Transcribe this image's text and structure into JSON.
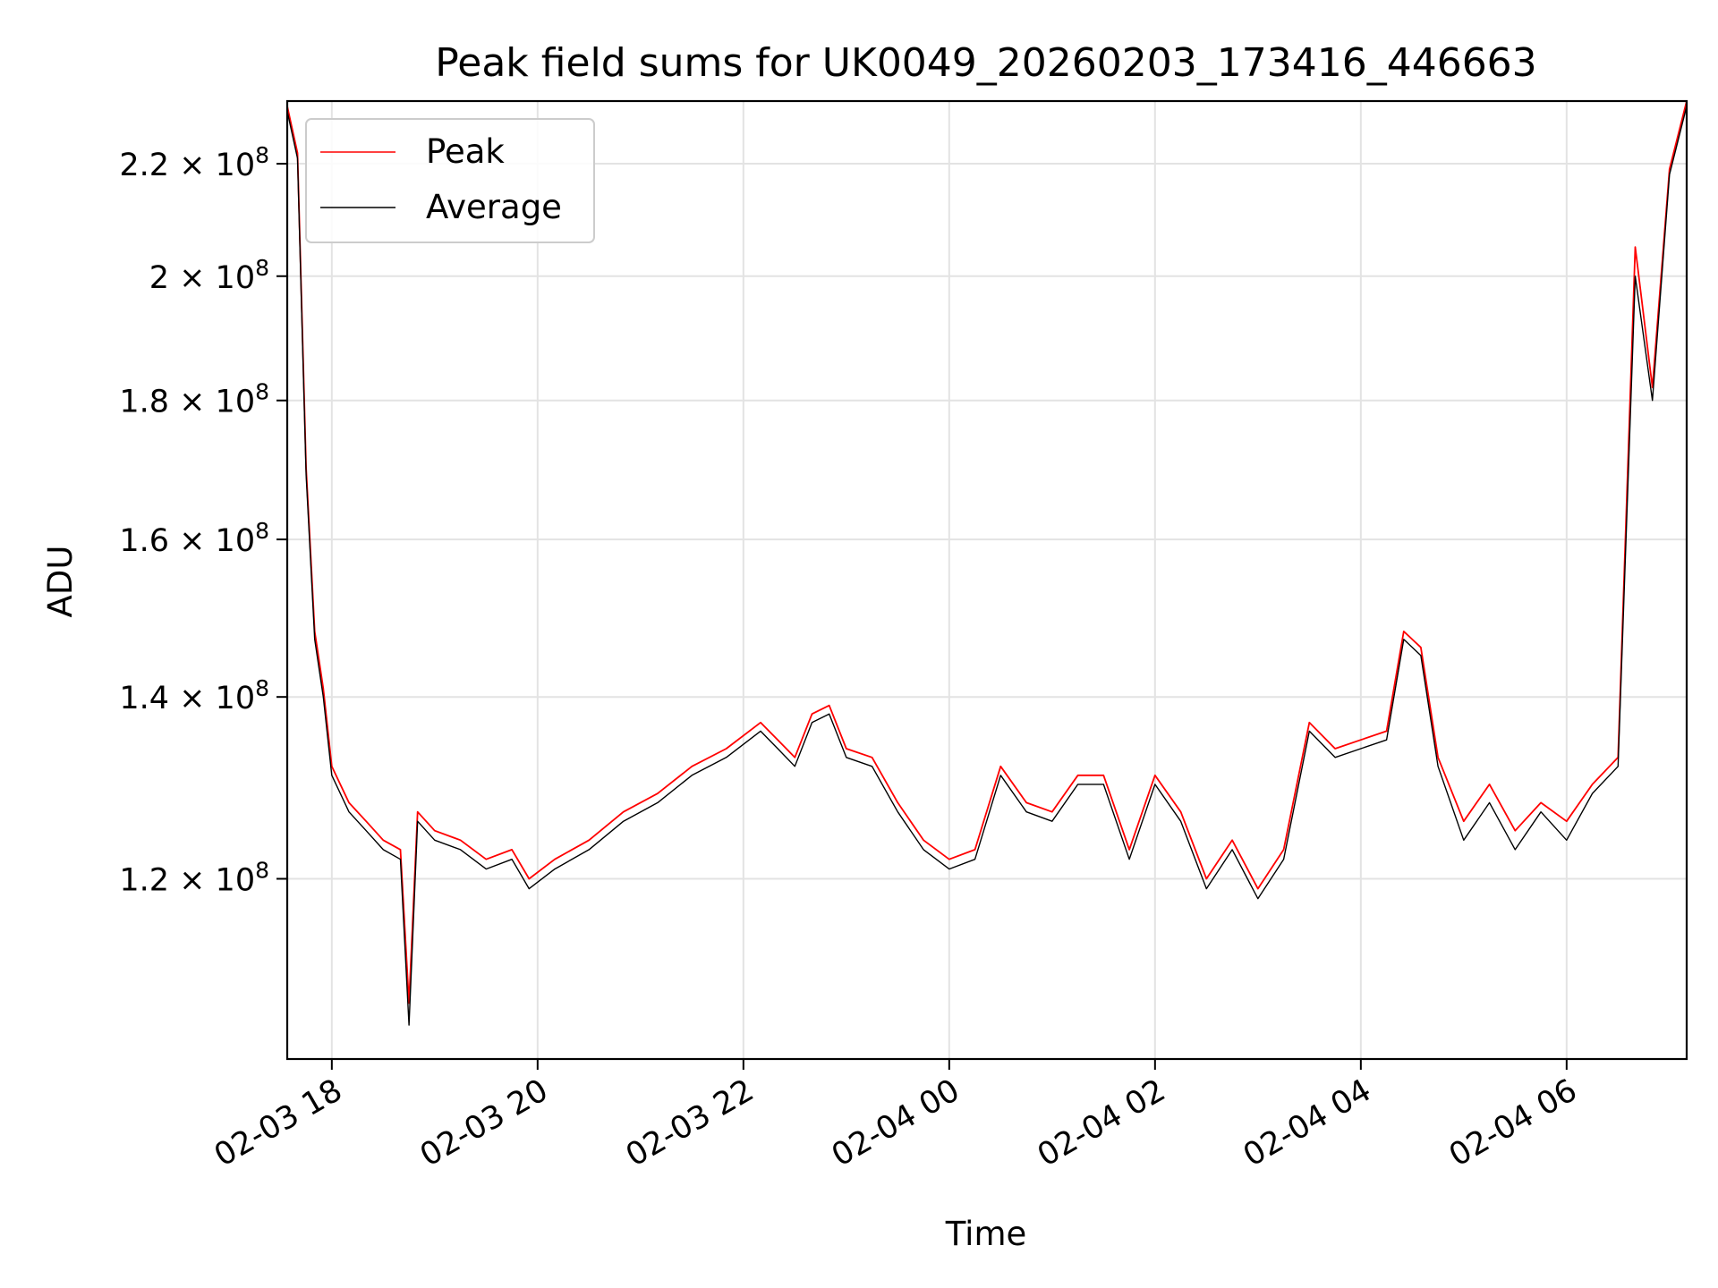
{
  "chart_data": {
    "type": "line",
    "title": "Peak field sums for UK0049_20260203_173416_446663",
    "xlabel": "Time",
    "ylabel": "ADU",
    "x_start": "2026-02-03 17:34",
    "x_end": "2026-02-04 07:10",
    "ylim": [
      103000000,
      232000000
    ],
    "grid": true,
    "legend_position": "top-left",
    "x_ticks": [
      {
        "label": "02-03 18",
        "value": "2026-02-03 18:00"
      },
      {
        "label": "02-03 20",
        "value": "2026-02-03 20:00"
      },
      {
        "label": "02-03 22",
        "value": "2026-02-03 22:00"
      },
      {
        "label": "02-04 00",
        "value": "2026-02-04 00:00"
      },
      {
        "label": "02-04 02",
        "value": "2026-02-04 02:00"
      },
      {
        "label": "02-04 04",
        "value": "2026-02-04 04:00"
      },
      {
        "label": "02-04 06",
        "value": "2026-02-04 06:00"
      }
    ],
    "y_ticks": [
      {
        "value": 120000000,
        "mantissa": "1.2",
        "exponent": "8"
      },
      {
        "value": 140000000,
        "mantissa": "1.4",
        "exponent": "8"
      },
      {
        "value": 160000000,
        "mantissa": "1.6",
        "exponent": "8"
      },
      {
        "value": 180000000,
        "mantissa": "1.8",
        "exponent": "8"
      },
      {
        "value": 200000000,
        "mantissa": "2",
        "exponent": "8"
      },
      {
        "value": 220000000,
        "mantissa": "2.2",
        "exponent": "8"
      }
    ],
    "y_tick_times": "× 10",
    "series": [
      {
        "name": "Peak",
        "color": "#ff0000",
        "x": [
          "2026-02-03 17:34",
          "2026-02-03 17:40",
          "2026-02-03 17:45",
          "2026-02-03 17:50",
          "2026-02-03 17:55",
          "2026-02-03 18:00",
          "2026-02-03 18:10",
          "2026-02-03 18:20",
          "2026-02-03 18:30",
          "2026-02-03 18:40",
          "2026-02-03 18:45",
          "2026-02-03 18:50",
          "2026-02-03 19:00",
          "2026-02-03 19:15",
          "2026-02-03 19:30",
          "2026-02-03 19:45",
          "2026-02-03 19:55",
          "2026-02-03 20:10",
          "2026-02-03 20:30",
          "2026-02-03 20:50",
          "2026-02-03 21:10",
          "2026-02-03 21:30",
          "2026-02-03 21:50",
          "2026-02-03 22:10",
          "2026-02-03 22:20",
          "2026-02-03 22:30",
          "2026-02-03 22:40",
          "2026-02-03 22:50",
          "2026-02-03 23:00",
          "2026-02-03 23:15",
          "2026-02-03 23:30",
          "2026-02-03 23:45",
          "2026-02-04 00:00",
          "2026-02-04 00:15",
          "2026-02-04 00:30",
          "2026-02-04 00:45",
          "2026-02-04 01:00",
          "2026-02-04 01:15",
          "2026-02-04 01:30",
          "2026-02-04 01:45",
          "2026-02-04 02:00",
          "2026-02-04 02:15",
          "2026-02-04 02:30",
          "2026-02-04 02:45",
          "2026-02-04 03:00",
          "2026-02-04 03:15",
          "2026-02-04 03:30",
          "2026-02-04 03:45",
          "2026-02-04 04:00",
          "2026-02-04 04:15",
          "2026-02-04 04:25",
          "2026-02-04 04:35",
          "2026-02-04 04:45",
          "2026-02-04 05:00",
          "2026-02-04 05:15",
          "2026-02-04 05:30",
          "2026-02-04 05:45",
          "2026-02-04 06:00",
          "2026-02-04 06:15",
          "2026-02-04 06:30",
          "2026-02-04 06:40",
          "2026-02-04 06:50",
          "2026-02-04 07:00",
          "2026-02-04 07:10"
        ],
        "y": [
          231000000,
          222000000,
          170000000,
          148000000,
          141000000,
          132000000,
          128000000,
          126000000,
          124000000,
          123000000,
          108000000,
          127000000,
          125000000,
          124000000,
          122000000,
          123000000,
          120000000,
          122000000,
          124000000,
          127000000,
          129000000,
          132000000,
          134000000,
          137000000,
          135000000,
          133000000,
          138000000,
          139000000,
          134000000,
          133000000,
          128000000,
          124000000,
          122000000,
          123000000,
          132000000,
          128000000,
          127000000,
          131000000,
          131000000,
          123000000,
          131000000,
          127000000,
          120000000,
          124000000,
          119000000,
          123000000,
          137000000,
          134000000,
          135000000,
          136000000,
          148000000,
          146000000,
          133000000,
          126000000,
          130000000,
          125000000,
          128000000,
          126000000,
          130000000,
          133000000,
          205000000,
          182000000,
          219000000,
          232000000
        ]
      },
      {
        "name": "Average",
        "color": "#000000",
        "x": [
          "2026-02-03 17:34",
          "2026-02-03 17:40",
          "2026-02-03 17:45",
          "2026-02-03 17:50",
          "2026-02-03 17:55",
          "2026-02-03 18:00",
          "2026-02-03 18:10",
          "2026-02-03 18:20",
          "2026-02-03 18:30",
          "2026-02-03 18:40",
          "2026-02-03 18:45",
          "2026-02-03 18:50",
          "2026-02-03 19:00",
          "2026-02-03 19:15",
          "2026-02-03 19:30",
          "2026-02-03 19:45",
          "2026-02-03 19:55",
          "2026-02-03 20:10",
          "2026-02-03 20:30",
          "2026-02-03 20:50",
          "2026-02-03 21:10",
          "2026-02-03 21:30",
          "2026-02-03 21:50",
          "2026-02-03 22:10",
          "2026-02-03 22:20",
          "2026-02-03 22:30",
          "2026-02-03 22:40",
          "2026-02-03 22:50",
          "2026-02-03 23:00",
          "2026-02-03 23:15",
          "2026-02-03 23:30",
          "2026-02-03 23:45",
          "2026-02-04 00:00",
          "2026-02-04 00:15",
          "2026-02-04 00:30",
          "2026-02-04 00:45",
          "2026-02-04 01:00",
          "2026-02-04 01:15",
          "2026-02-04 01:30",
          "2026-02-04 01:45",
          "2026-02-04 02:00",
          "2026-02-04 02:15",
          "2026-02-04 02:30",
          "2026-02-04 02:45",
          "2026-02-04 03:00",
          "2026-02-04 03:15",
          "2026-02-04 03:30",
          "2026-02-04 03:45",
          "2026-02-04 04:00",
          "2026-02-04 04:15",
          "2026-02-04 04:25",
          "2026-02-04 04:35",
          "2026-02-04 04:45",
          "2026-02-04 05:00",
          "2026-02-04 05:15",
          "2026-02-04 05:30",
          "2026-02-04 05:45",
          "2026-02-04 06:00",
          "2026-02-04 06:15",
          "2026-02-04 06:30",
          "2026-02-04 06:40",
          "2026-02-04 06:50",
          "2026-02-04 07:00",
          "2026-02-04 07:10"
        ],
        "y": [
          230000000,
          221000000,
          169000000,
          147000000,
          140000000,
          131000000,
          127000000,
          125000000,
          123000000,
          122000000,
          106000000,
          126000000,
          124000000,
          123000000,
          121000000,
          122000000,
          119000000,
          121000000,
          123000000,
          126000000,
          128000000,
          131000000,
          133000000,
          136000000,
          134000000,
          132000000,
          137000000,
          138000000,
          133000000,
          132000000,
          127000000,
          123000000,
          121000000,
          122000000,
          131000000,
          127000000,
          126000000,
          130000000,
          130000000,
          122000000,
          130000000,
          126000000,
          119000000,
          123000000,
          118000000,
          122000000,
          136000000,
          133000000,
          134000000,
          135000000,
          147000000,
          145000000,
          132000000,
          124000000,
          128000000,
          123000000,
          127000000,
          124000000,
          129000000,
          132000000,
          200000000,
          180000000,
          218000000,
          231000000
        ]
      }
    ]
  }
}
